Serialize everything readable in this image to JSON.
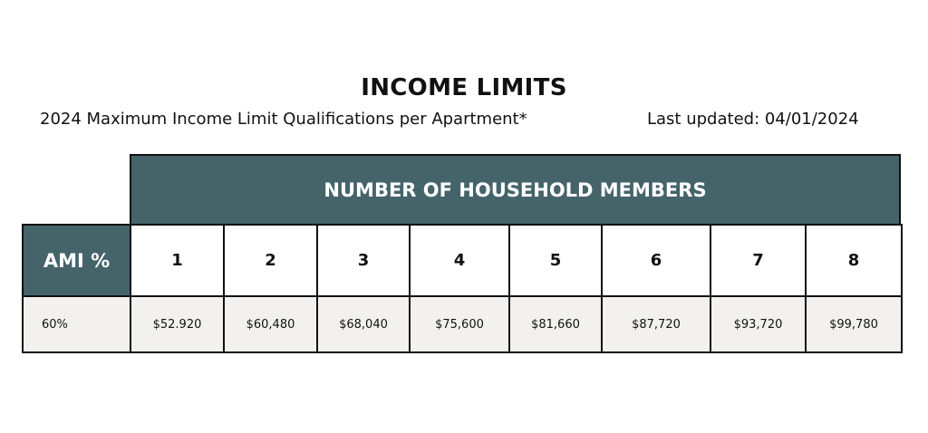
{
  "title": "INCOME LIMITS",
  "subtitle": "2024 Maximum Income Limit Qualifications per Apartment*",
  "last_updated": "Last updated: 04/01/2024",
  "colors": {
    "header": "#44646a",
    "row": "#f2f1ee"
  },
  "table": {
    "group_header": "NUMBER OF HOUSEHOLD MEMBERS",
    "row_header": "AMI %",
    "columns": [
      "1",
      "2",
      "3",
      "4",
      "5",
      "6",
      "7",
      "8"
    ],
    "rows": [
      {
        "ami": "60%",
        "values": [
          "$52.920",
          "$60,480",
          "$68,040",
          "$75,600",
          "$81,660",
          "$87,720",
          "$93,720",
          "$99,780"
        ]
      }
    ]
  }
}
